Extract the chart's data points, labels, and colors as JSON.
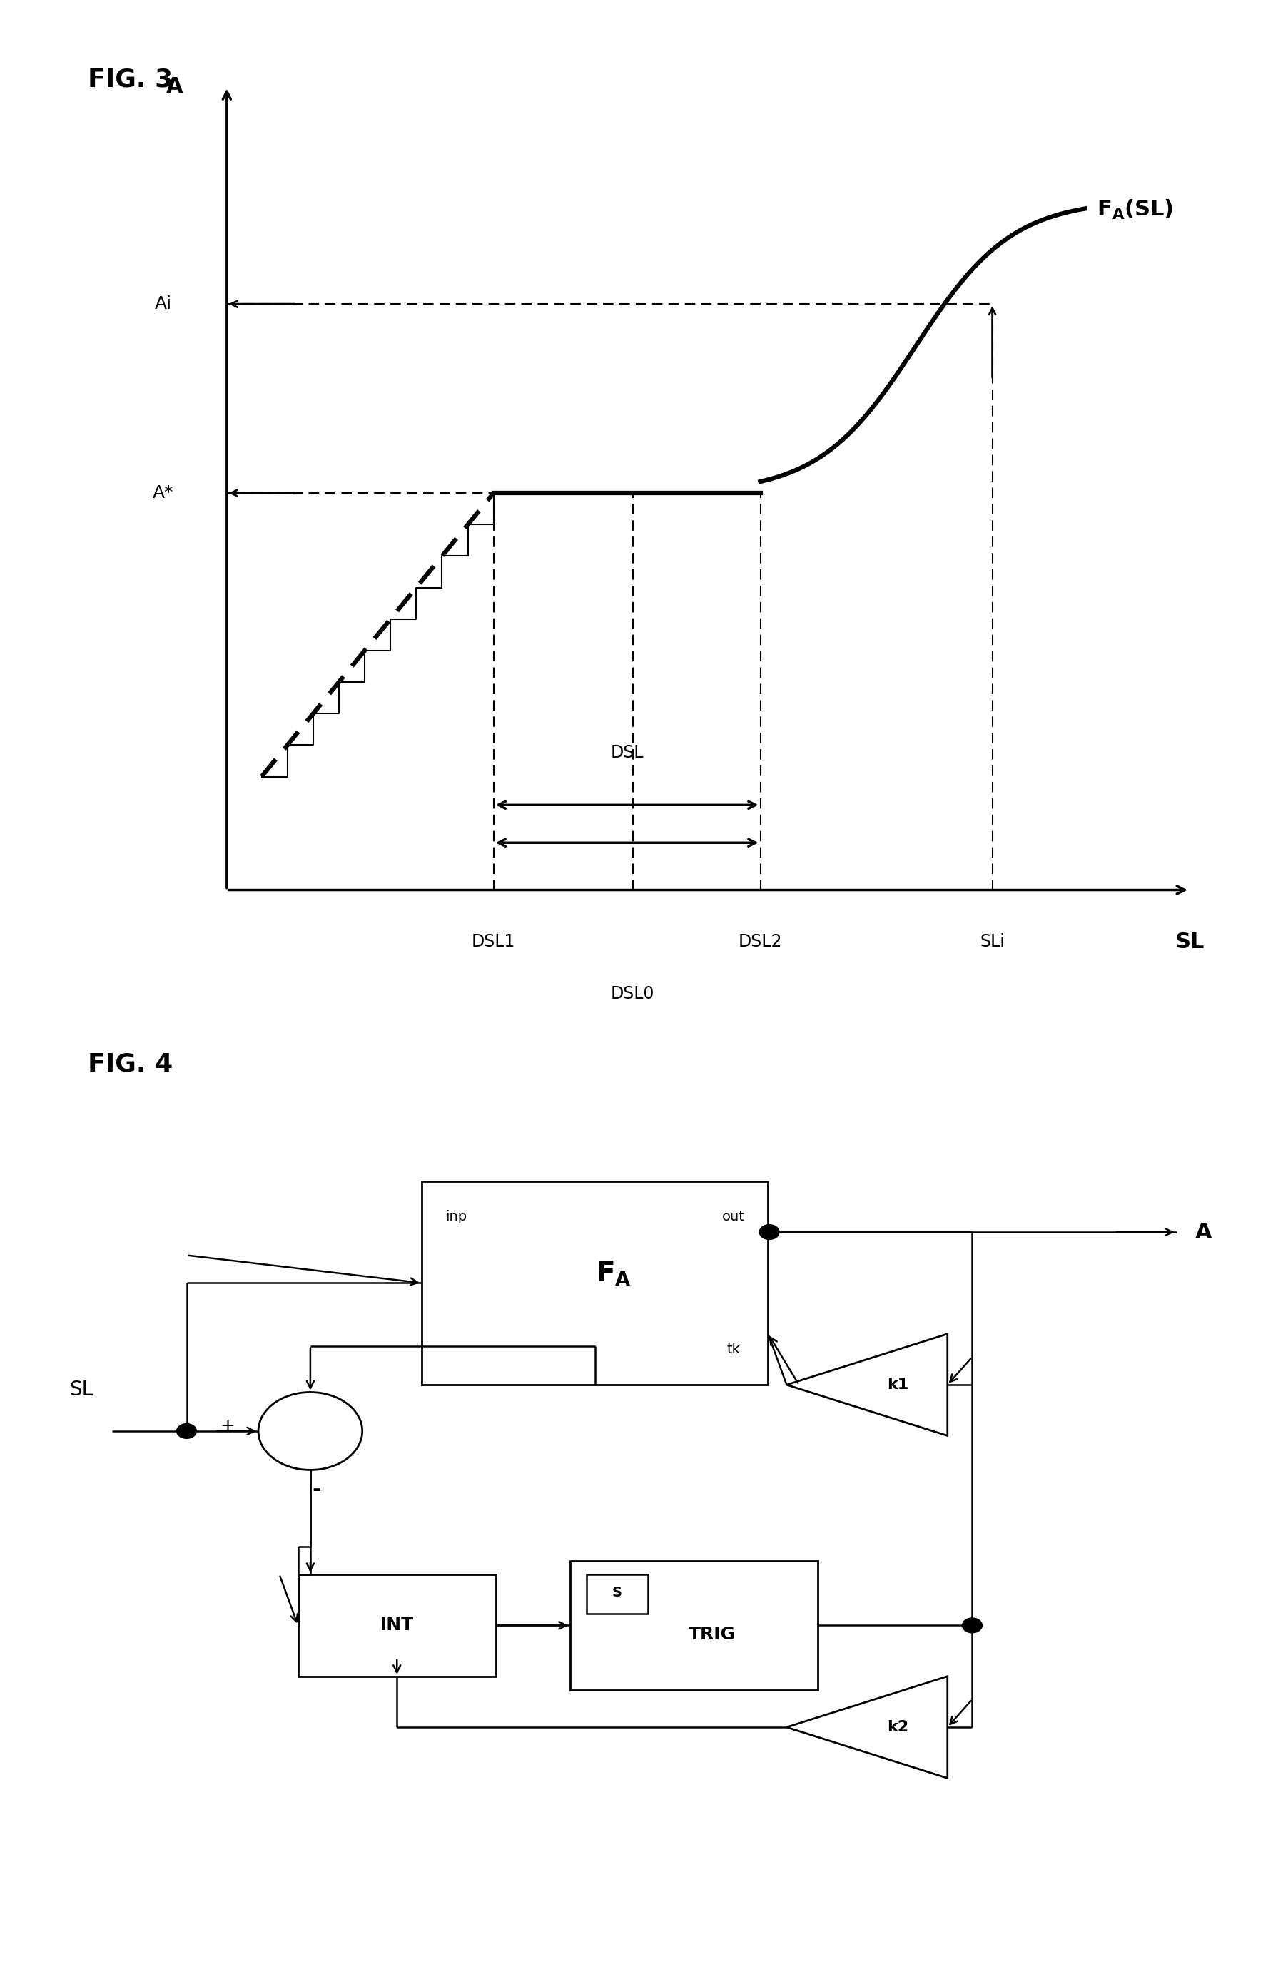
{
  "fig3_title": "FIG. 3",
  "fig4_title": "FIG. 4",
  "background_color": "#ffffff",
  "fig3": {
    "ax_label_A": "A",
    "ax_label_SL": "SL",
    "curve_label": "F_A(SL)",
    "label_Ai": "Ai",
    "label_Astar": "A*",
    "label_DSL1": "DSL1",
    "label_DSL2": "DSL2",
    "label_DSL0": "DSL0",
    "label_DSL": "DSL",
    "label_SLi": "SLi"
  },
  "fig4": {
    "label_SL": "SL",
    "label_A": "A",
    "label_FA": "F_A",
    "label_inp": "inp",
    "label_out": "out",
    "label_tk": "tk",
    "label_INT": "INT",
    "label_TRIG": "TRIG",
    "label_S": "S",
    "label_k1": "k1",
    "label_k2": "k2",
    "label_plus": "+",
    "label_minus": "-"
  }
}
